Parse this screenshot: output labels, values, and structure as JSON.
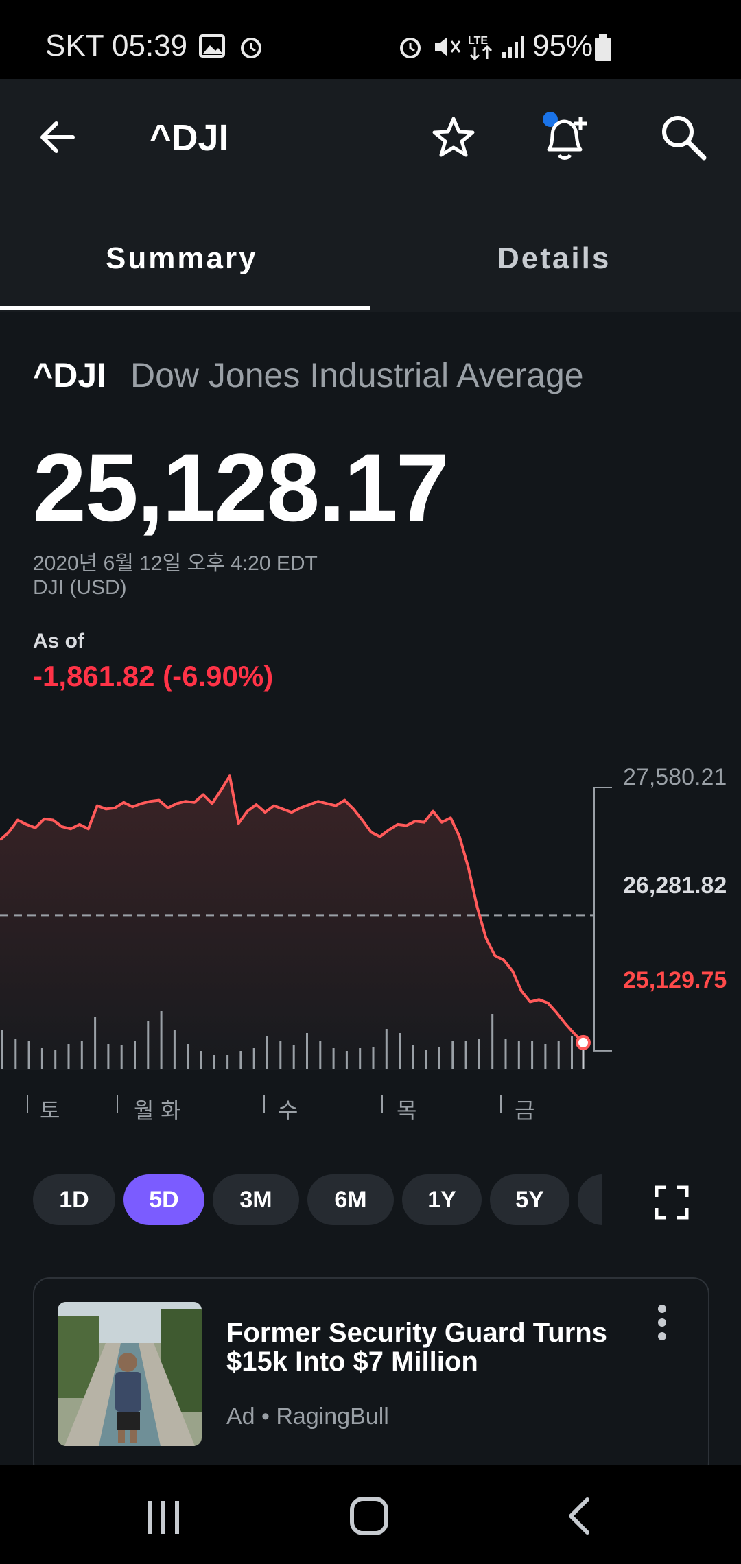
{
  "status_bar": {
    "carrier_time": "SKT 05:39",
    "battery": "95%",
    "icons": [
      "image-icon",
      "alarm-icon",
      "alarm-icon",
      "mute-icon",
      "lte-icon",
      "signal-icon",
      "battery-icon"
    ]
  },
  "header": {
    "title": "^DJI",
    "icons": [
      "back-arrow-icon",
      "star-icon",
      "bell-plus-icon",
      "search-icon"
    ]
  },
  "tabs": [
    {
      "label": "Summary",
      "active": true
    },
    {
      "label": "Details",
      "active": false
    }
  ],
  "quote": {
    "symbol": "^DJI",
    "name": "Dow Jones Industrial Average",
    "price": "25,128.17",
    "timestamp": "2020년 6월 12일 오후 4:20 EDT",
    "exchange": "DJI (USD)",
    "as_of_label": "As of",
    "change": "-1,861.82 (-6.90%)"
  },
  "chart_data": {
    "type": "area",
    "y_labels": {
      "high": "27,580.21",
      "prev_close": "26,281.82",
      "last": "25,129.75"
    },
    "x_labels": [
      "토",
      "월",
      "화",
      "수",
      "목",
      "금"
    ],
    "values": [
      26970,
      27040,
      27150,
      27110,
      27080,
      27160,
      27150,
      27090,
      27070,
      27110,
      27070,
      27280,
      27250,
      27260,
      27310,
      27270,
      27300,
      27320,
      27330,
      27260,
      27300,
      27320,
      27310,
      27380,
      27300,
      27420,
      27550,
      27120,
      27230,
      27290,
      27220,
      27280,
      27250,
      27220,
      27260,
      27290,
      27320,
      27300,
      27280,
      27330,
      27250,
      27150,
      27040,
      27000,
      27060,
      27110,
      27100,
      27140,
      27130,
      27230,
      27130,
      27170,
      27000,
      26720,
      26360,
      26080,
      25920,
      25880,
      25780,
      25600,
      25500,
      25520,
      25490,
      25400,
      25300,
      25210,
      25129.75
    ],
    "ylim": [
      24880,
      27620
    ],
    "prev_close": 26281.82,
    "volume_bars": [
      0.28,
      0.22,
      0.2,
      0.15,
      0.14,
      0.18,
      0.2,
      0.38,
      0.18,
      0.17,
      0.2,
      0.35,
      0.42,
      0.28,
      0.18,
      0.13,
      0.1,
      0.1,
      0.13,
      0.15,
      0.24,
      0.2,
      0.17,
      0.26,
      0.2,
      0.15,
      0.13,
      0.15,
      0.16,
      0.29,
      0.26,
      0.17,
      0.14,
      0.16,
      0.2,
      0.2,
      0.22,
      0.4,
      0.22,
      0.2,
      0.2,
      0.18,
      0.2,
      0.24
    ],
    "line_color": "#ff5a5a",
    "grid": false
  },
  "ranges": [
    {
      "label": "1D",
      "active": false
    },
    {
      "label": "5D",
      "active": true
    },
    {
      "label": "3M",
      "active": false
    },
    {
      "label": "6M",
      "active": false
    },
    {
      "label": "1Y",
      "active": false
    },
    {
      "label": "5Y",
      "active": false
    }
  ],
  "ad": {
    "title": "Former Security Guard Turns $15k Into $7 Million",
    "meta": "Ad • RagingBull"
  },
  "nav_bar": {
    "icons": [
      "recent-apps-icon",
      "home-icon",
      "back-icon"
    ]
  },
  "colors": {
    "accent": "#7b5cff",
    "negative": "#ff3347",
    "background": "#12161a",
    "notification_dot": "#1a73e8"
  }
}
